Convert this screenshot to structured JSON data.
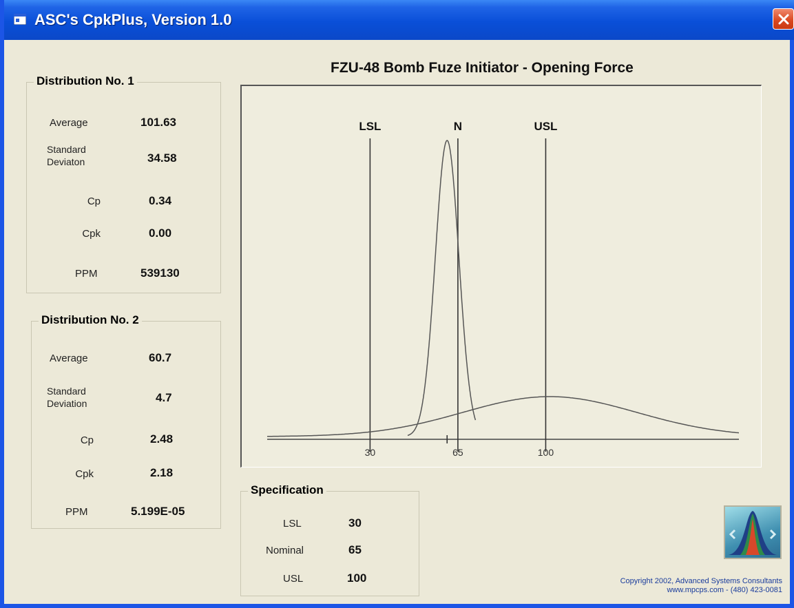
{
  "window": {
    "title": "ASC's CpkPlus, Version 1.0"
  },
  "dist1": {
    "title": "Distribution No. 1",
    "average_label": "Average",
    "average": "101.63",
    "sd_label_1": "Standard",
    "sd_label_2": "Deviaton",
    "sd": "34.58",
    "cp_label": "Cp",
    "cp": "0.34",
    "cpk_label": "Cpk",
    "cpk": "0.00",
    "ppm_label": "PPM",
    "ppm": "539130"
  },
  "dist2": {
    "title": "Distribution No. 2",
    "average_label": "Average",
    "average": "60.7",
    "sd_label_1": "Standard",
    "sd_label_2": "Deviation",
    "sd": "4.7",
    "cp_label": "Cp",
    "cp": "2.48",
    "cpk_label": "Cpk",
    "cpk": "2.18",
    "ppm_label": "PPM",
    "ppm": "5.199E-05"
  },
  "spec": {
    "title": "Specification",
    "lsl_label": "LSL",
    "lsl": "30",
    "nominal_label": "Nominal",
    "nominal": "65",
    "usl_label": "USL",
    "usl": "100"
  },
  "chart_data": {
    "type": "line",
    "title": "FZU-48 Bomb Fuze Initiator - Opening Force",
    "xlim": [
      -11,
      177
    ],
    "xticks": [
      "30",
      "65",
      "100"
    ],
    "xtick_values": [
      30,
      65,
      100
    ],
    "spec_lines": [
      {
        "label": "LSL",
        "x": 30
      },
      {
        "label": "N",
        "x": 65
      },
      {
        "label": "USL",
        "x": 100
      }
    ],
    "series": [
      {
        "mean": 101.63,
        "sd": 34.58
      },
      {
        "mean": 60.7,
        "sd": 4.7
      }
    ],
    "mean_tick_x": 60.7,
    "colors": {
      "curve": "#555555",
      "lines": "#333333"
    }
  },
  "copyright": {
    "line1": "Copyright 2002, Advanced Systems Consultants",
    "line2": "www.mpcps.com  -  (480) 423-0081"
  },
  "icons": {
    "app": "app-window-icon",
    "close": "close-icon",
    "logo": "bell-curve-logo-icon"
  }
}
